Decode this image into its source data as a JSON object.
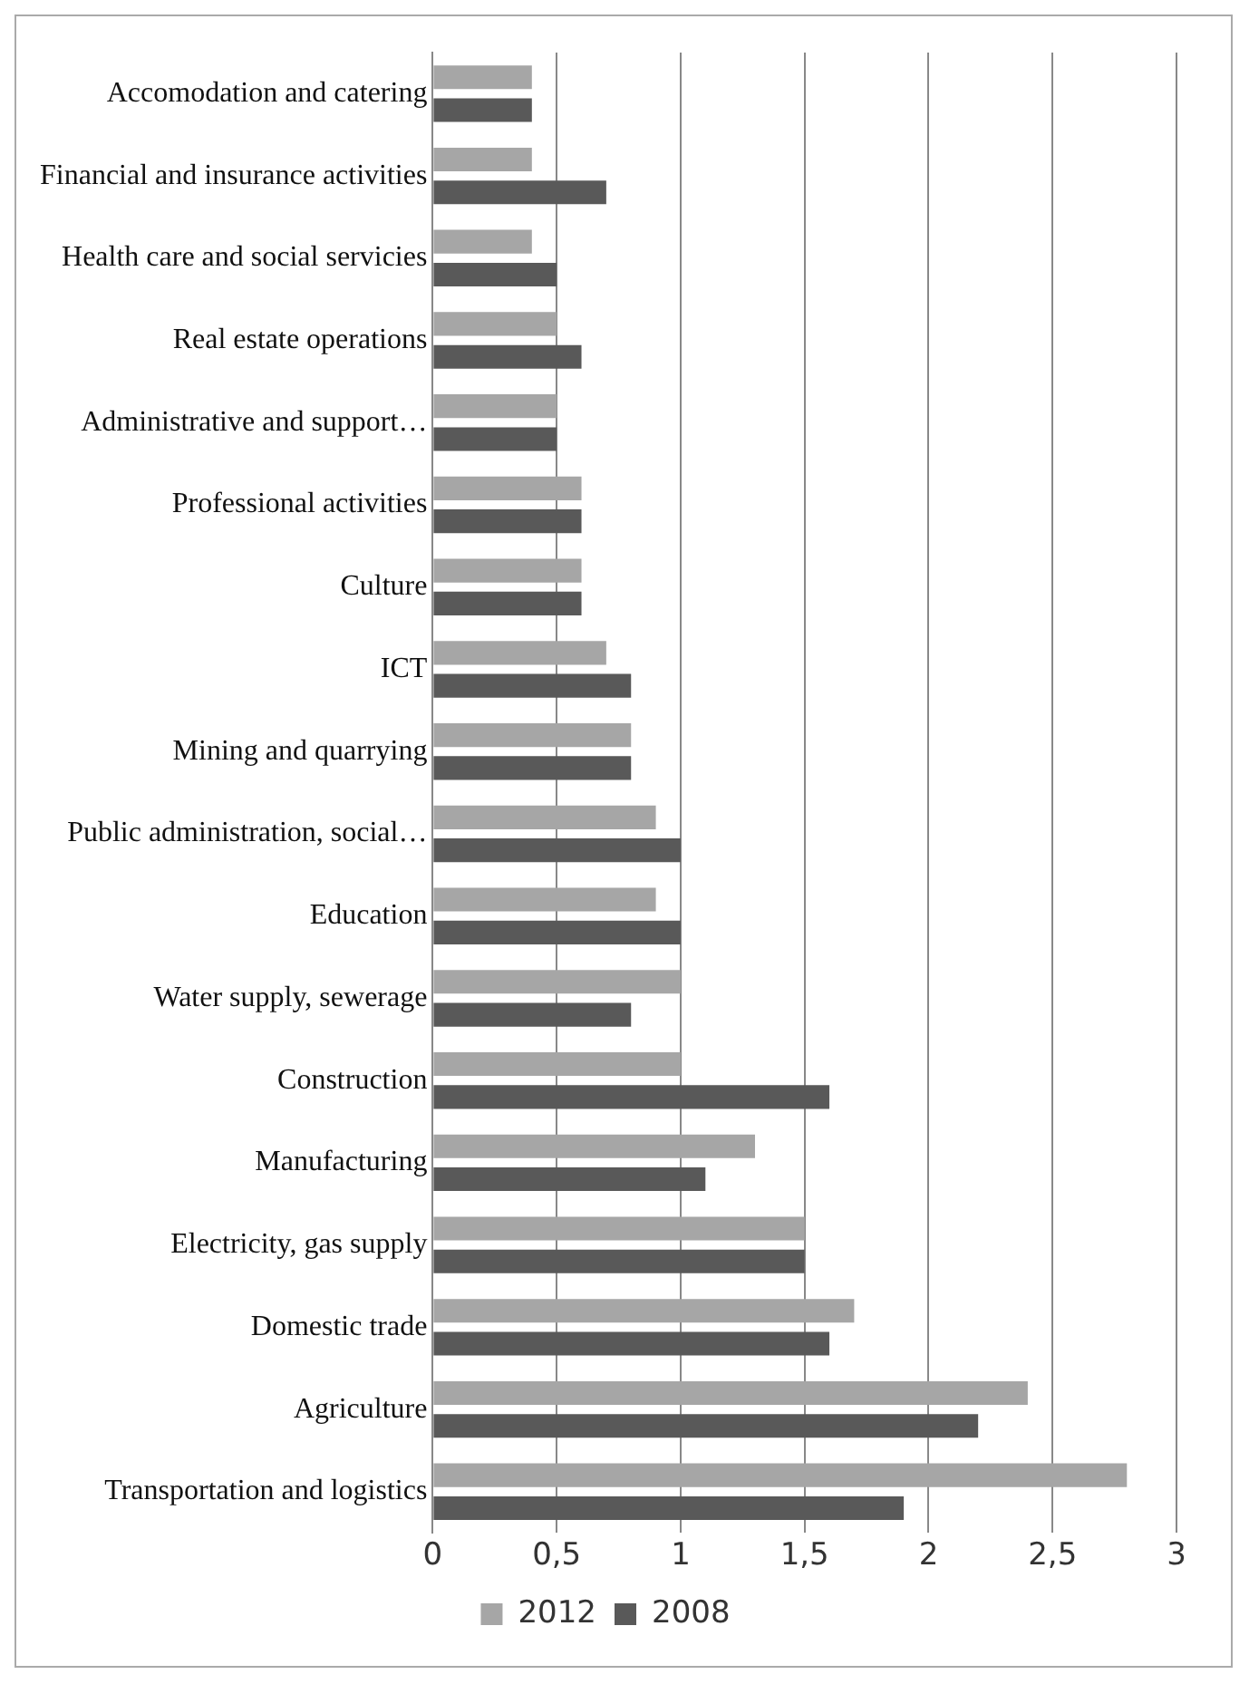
{
  "chart_data": {
    "type": "bar",
    "orientation": "horizontal",
    "categories": [
      "Accomodation and catering",
      "Financial and insurance activities",
      "Health care and social servicies",
      "Real estate operations",
      "Administrative and support…",
      "Professional activities",
      "Culture",
      "ICT",
      "Mining and quarrying",
      "Public administration, social…",
      "Education",
      "Water supply, sewerage",
      "Construction",
      "Manufacturing",
      "Electricity, gas supply",
      "Domestic trade",
      "Agriculture",
      "Transportation and logistics"
    ],
    "series": [
      {
        "name": "2012",
        "color": "#a6a6a6",
        "values": [
          0.4,
          0.4,
          0.4,
          0.5,
          0.5,
          0.6,
          0.6,
          0.7,
          0.8,
          0.9,
          0.9,
          1.0,
          1.0,
          1.3,
          1.5,
          1.7,
          2.4,
          2.8
        ]
      },
      {
        "name": "2008",
        "color": "#595959",
        "values": [
          0.4,
          0.7,
          0.5,
          0.6,
          0.5,
          0.6,
          0.6,
          0.8,
          0.8,
          1.0,
          1.0,
          0.8,
          1.6,
          1.1,
          1.5,
          1.6,
          2.2,
          1.9
        ]
      }
    ],
    "xlim": [
      0,
      3
    ],
    "xticks": [
      0,
      {
        "value": 0.5,
        "label": "0,5"
      },
      1,
      {
        "value": 1.5,
        "label": "1,5"
      },
      2,
      {
        "value": 2.5,
        "label": "2,5"
      },
      3
    ],
    "grid": "x",
    "legend": "bottom"
  }
}
